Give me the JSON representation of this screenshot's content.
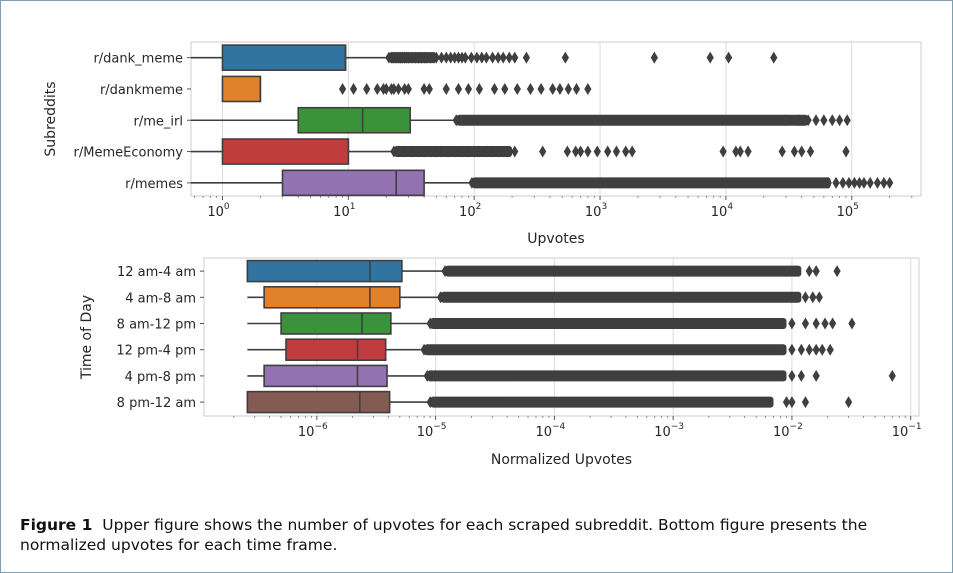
{
  "caption": {
    "label": "Figure 1",
    "text": "Upper figure shows the number of upvotes for each scraped subreddit. Bottom figure presents the normalized upvotes for each time frame."
  },
  "chart_data": [
    {
      "type": "boxplot",
      "orientation": "horizontal",
      "xscale": "log",
      "xlabel": "Upvotes",
      "ylabel": "Subreddits",
      "xlim_log10": [
        -0.25,
        5.55
      ],
      "x_ticks": [
        {
          "base": "10",
          "exp": "0",
          "value": 1
        },
        {
          "base": "10",
          "exp": "1",
          "value": 10
        },
        {
          "base": "10",
          "exp": "2",
          "value": 100
        },
        {
          "base": "10",
          "exp": "3",
          "value": 1000
        },
        {
          "base": "10",
          "exp": "4",
          "value": 10000
        },
        {
          "base": "10",
          "exp": "5",
          "value": 100000
        }
      ],
      "grid": "vertical",
      "series": [
        {
          "name": "r/dank_meme",
          "color": "#3274a1",
          "whisker_low": 0.45,
          "q1": 1,
          "median": 9.5,
          "q3": 9.5,
          "whisker_high": 20,
          "outliers": [
            21,
            22,
            23,
            24,
            25,
            26,
            27,
            28,
            29,
            30,
            32,
            34,
            36,
            38,
            40,
            42,
            45,
            48,
            50,
            55,
            60,
            65,
            70,
            75,
            80,
            85,
            95,
            105,
            115,
            125,
            140,
            155,
            170,
            190,
            210,
            260,
            530,
            2700,
            7500,
            10500,
            24000
          ],
          "outlier_fill": "dense-to:50"
        },
        {
          "name": "r/dankmeme",
          "color": "#e1812c",
          "whisker_low": 1,
          "q1": 1,
          "median": 2,
          "q3": 2,
          "whisker_high": 2,
          "outliers": [
            9,
            11,
            14,
            17,
            19,
            20,
            22,
            23,
            25,
            28,
            30,
            40,
            44,
            60,
            75,
            90,
            110,
            145,
            175,
            220,
            280,
            340,
            420,
            480,
            560,
            650,
            800
          ],
          "outlier_fill": "none"
        },
        {
          "name": "r/me_irl",
          "color": "#3a923a",
          "whisker_low": 0.45,
          "q1": 4,
          "median": 13,
          "q3": 31,
          "whisker_high": 70,
          "outliers": [
            72,
            30000,
            38000,
            45000,
            52000,
            60000,
            70000,
            80000,
            92000
          ],
          "outlier_fill": "dense-to:45000"
        },
        {
          "name": "r/MemeEconomy",
          "color": "#c03d3e",
          "whisker_low": 0.45,
          "q1": 1,
          "median": 10,
          "q3": 10,
          "whisker_high": 22,
          "outliers": [
            23,
            25,
            28,
            32,
            36,
            40,
            45,
            50,
            55,
            62,
            70,
            80,
            90,
            100,
            110,
            125,
            140,
            155,
            170,
            190,
            210,
            350,
            550,
            640,
            700,
            800,
            950,
            1150,
            1350,
            1600,
            1800,
            9500,
            12000,
            13000,
            15000,
            28000,
            35000,
            40000,
            47000,
            90000
          ],
          "outlier_fill": "dense-to:200"
        },
        {
          "name": "r/memes",
          "color": "#9372b2",
          "whisker_low": 0.45,
          "q1": 3,
          "median": 24,
          "q3": 40,
          "whisker_high": 95,
          "outliers": [
            96,
            65000,
            75000,
            85000,
            95000,
            105000,
            115000,
            125000,
            140000,
            160000,
            180000,
            200000
          ],
          "outlier_fill": "dense-to:68000"
        }
      ]
    },
    {
      "type": "boxplot",
      "orientation": "horizontal",
      "xscale": "log",
      "xlabel": "Normalized Upvotes",
      "ylabel": "Time of Day",
      "xlim_log10": [
        -6.95,
        -0.93
      ],
      "x_ticks": [
        {
          "base": "10",
          "exp": "−6",
          "value": 1e-06
        },
        {
          "base": "10",
          "exp": "−5",
          "value": 1e-05
        },
        {
          "base": "10",
          "exp": "−4",
          "value": 0.0001
        },
        {
          "base": "10",
          "exp": "−3",
          "value": 0.001
        },
        {
          "base": "10",
          "exp": "−2",
          "value": 0.01
        },
        {
          "base": "10",
          "exp": "−1",
          "value": 0.1
        }
      ],
      "grid": "vertical",
      "series": [
        {
          "name": "12 am-4 am",
          "color": "#3274a1",
          "whisker_low": 2.6e-07,
          "q1": 2.6e-07,
          "median": 2.8e-06,
          "q3": 5.2e-06,
          "whisker_high": 1.15e-05,
          "outliers": [
            1.2e-05,
            0.014,
            0.016,
            0.024
          ],
          "outlier_fill": "dense-to:1.2e-2"
        },
        {
          "name": "4 am-8 am",
          "color": "#e1812c",
          "whisker_low": 2.6e-07,
          "q1": 3.6e-07,
          "median": 2.8e-06,
          "q3": 5e-06,
          "whisker_high": 1.05e-05,
          "outliers": [
            1.1e-05,
            0.013,
            0.015,
            0.017
          ],
          "outlier_fill": "dense-to:1.2e-2"
        },
        {
          "name": "8 am-12 pm",
          "color": "#3a923a",
          "whisker_low": 2.6e-07,
          "q1": 5e-07,
          "median": 2.4e-06,
          "q3": 4.2e-06,
          "whisker_high": 8.5e-06,
          "outliers": [
            9e-06,
            0.01,
            0.013,
            0.016,
            0.019,
            0.022,
            0.032
          ],
          "outlier_fill": "dense-to:9e-3"
        },
        {
          "name": "12 pm-4 pm",
          "color": "#c03d3e",
          "whisker_low": 2.6e-07,
          "q1": 5.5e-07,
          "median": 2.2e-06,
          "q3": 3.8e-06,
          "whisker_high": 7.5e-06,
          "outliers": [
            8e-06,
            0.01,
            0.012,
            0.014,
            0.016,
            0.018,
            0.021
          ],
          "outlier_fill": "dense-to:9e-3"
        },
        {
          "name": "4 pm-8 pm",
          "color": "#9372b2",
          "whisker_low": 2.6e-07,
          "q1": 3.6e-07,
          "median": 2.2e-06,
          "q3": 3.9e-06,
          "whisker_high": 8e-06,
          "outliers": [
            8.5e-06,
            0.01,
            0.012,
            0.016,
            0.07
          ],
          "outlier_fill": "dense-to:9e-3"
        },
        {
          "name": "8 pm-12 am",
          "color": "#845b53",
          "whisker_low": 2.6e-07,
          "q1": 2.6e-07,
          "median": 2.3e-06,
          "q3": 4.1e-06,
          "whisker_high": 8.5e-06,
          "outliers": [
            9e-06,
            0.009,
            0.01,
            0.013,
            0.03
          ],
          "outlier_fill": "dense-to:7e-3"
        }
      ]
    }
  ]
}
